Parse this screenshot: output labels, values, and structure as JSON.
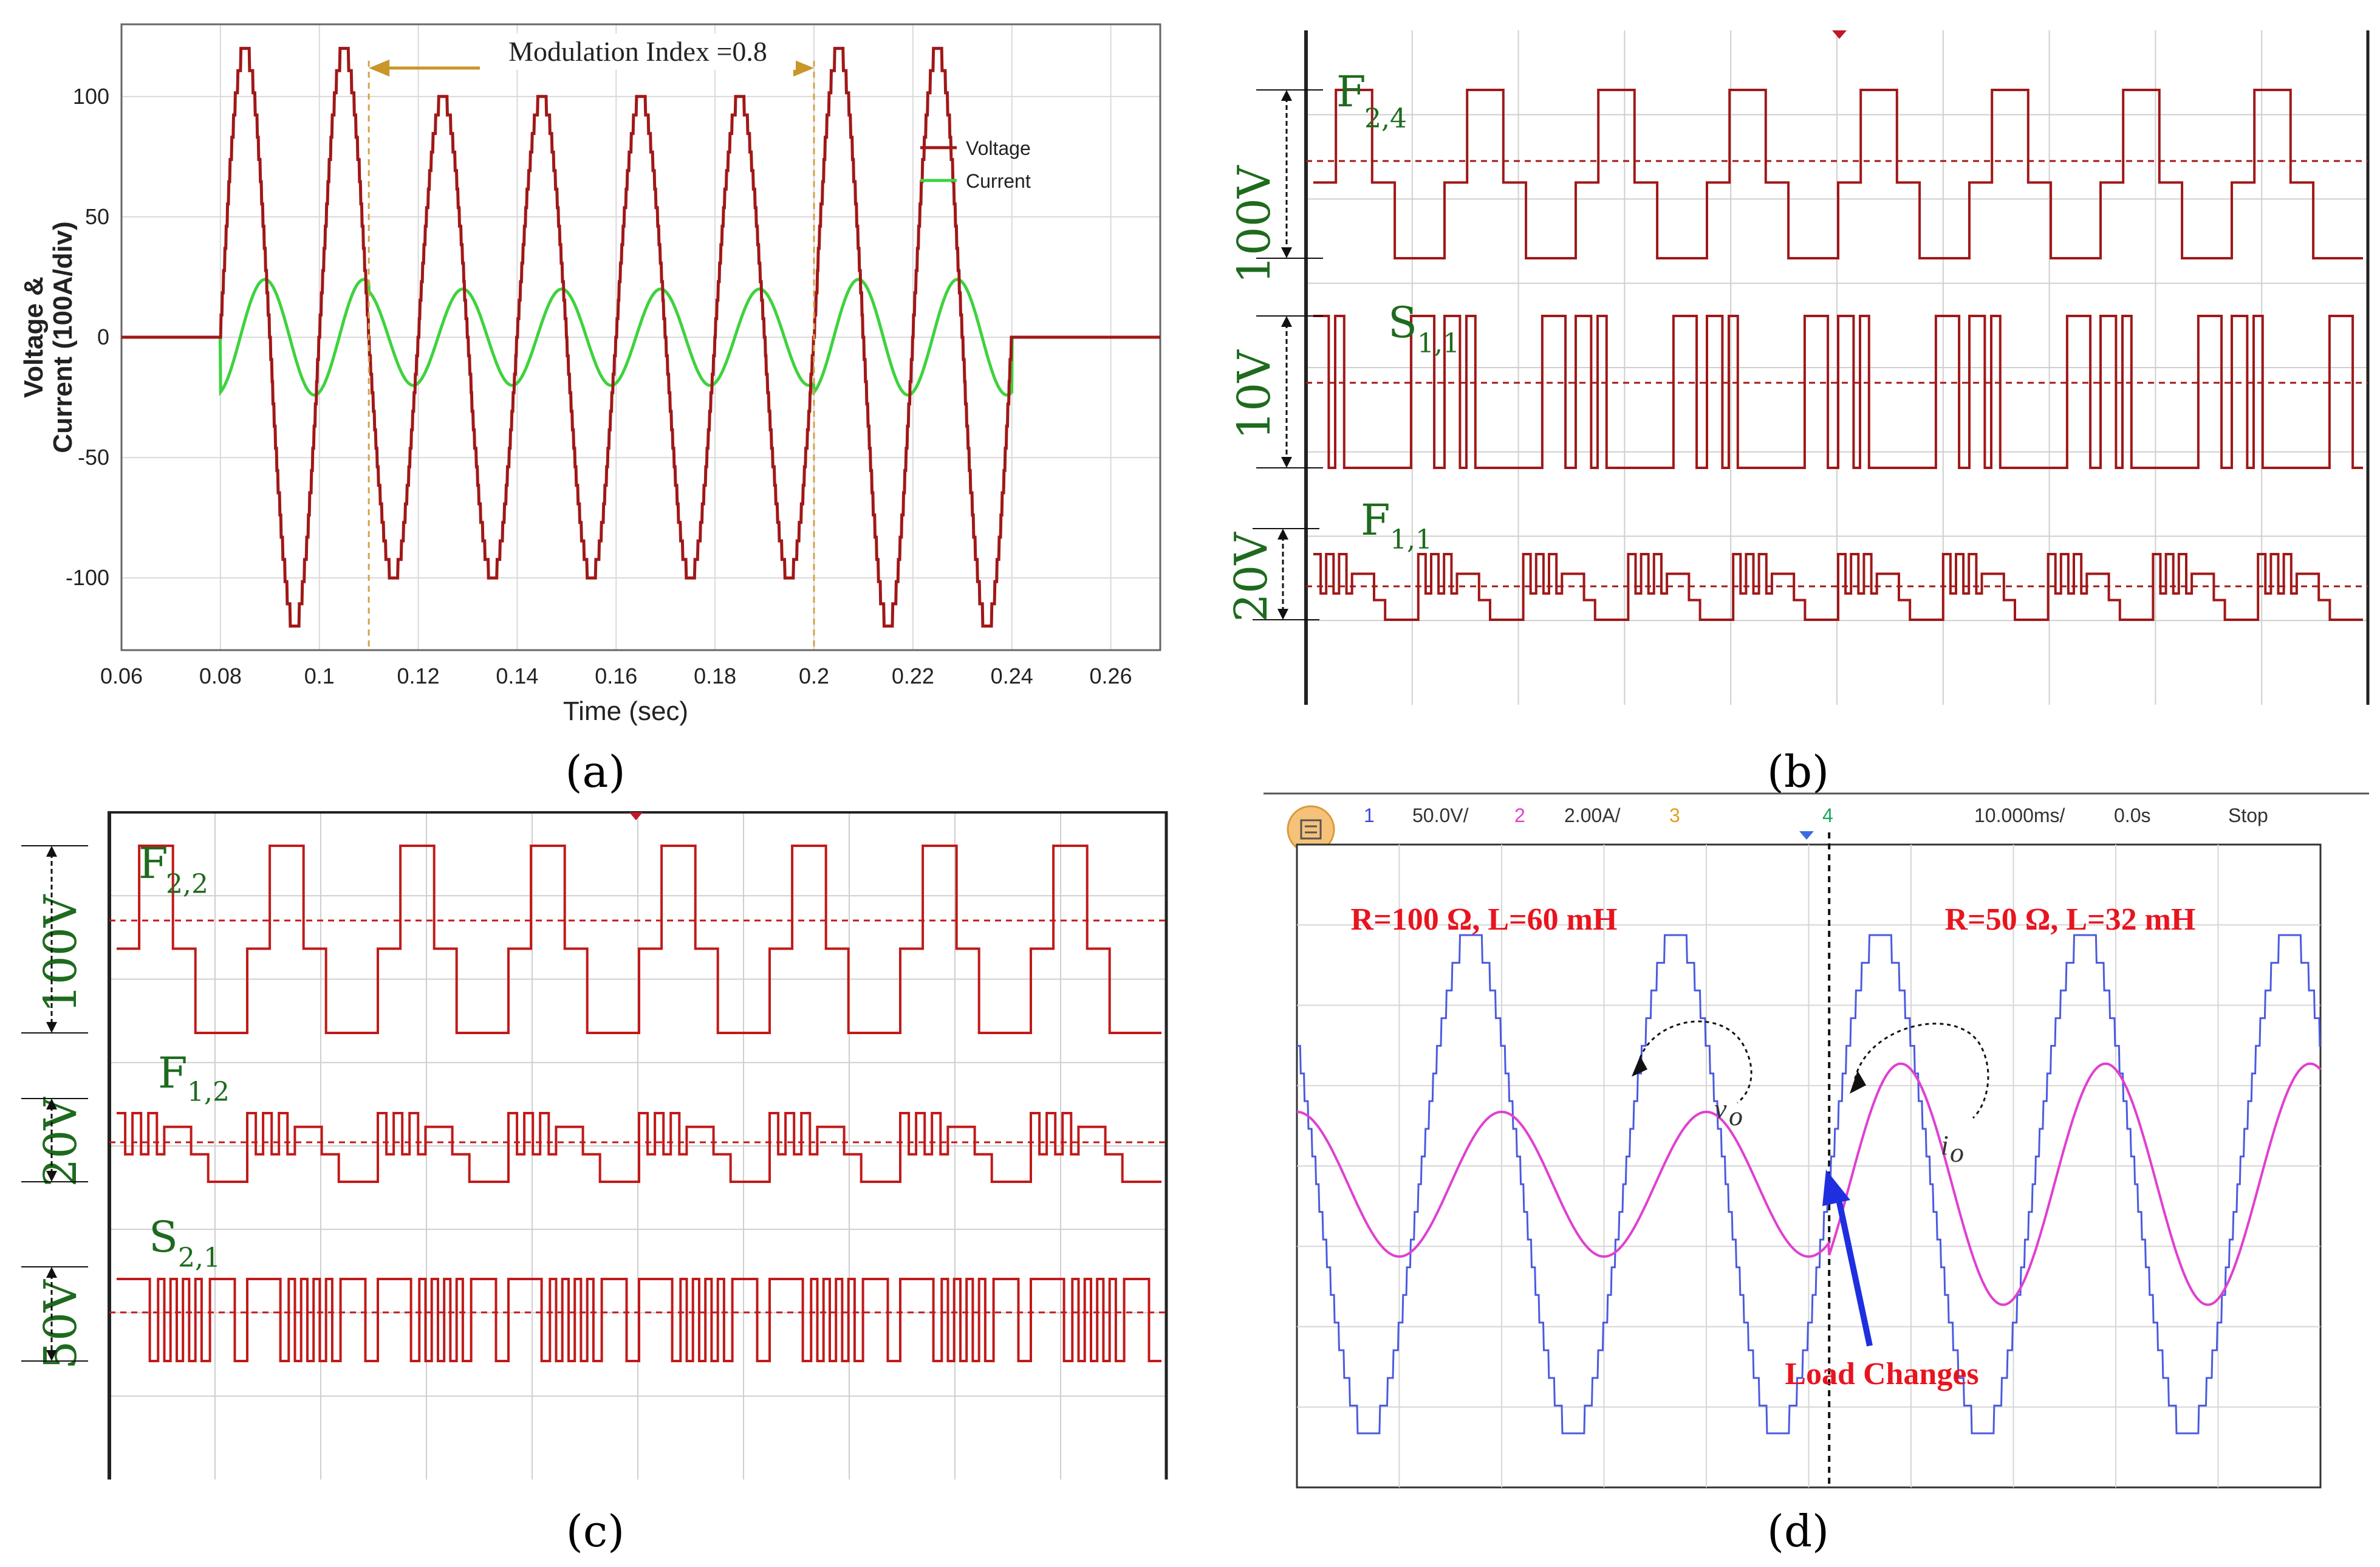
{
  "captions": {
    "a": "(a)",
    "b": "(b)",
    "c": "(c)",
    "d": "(d)"
  },
  "chart_data": [
    {
      "type": "line",
      "panel": "a",
      "title": "",
      "xlabel": "Time (sec)",
      "ylabel_line1": "Voltage &",
      "ylabel_line2": "Current (100A/div)",
      "xlim": [
        0.06,
        0.27
      ],
      "ylim": [
        -130,
        130
      ],
      "x_ticks": [
        "0.06",
        "0.08",
        "0.1",
        "0.12",
        "0.14",
        "0.16",
        "0.18",
        "0.2",
        "0.22",
        "0.24",
        "0.26"
      ],
      "y_ticks": [
        "100",
        "50",
        "0",
        "-50",
        "-100"
      ],
      "grid": true,
      "legend": "top-right",
      "annotation": {
        "text": "Modulation Index =0.8",
        "x_start": 0.11,
        "x_end": 0.2
      },
      "series": [
        {
          "name": "Voltage",
          "color": "#a01818",
          "on": 0.08,
          "off": 0.24,
          "frequency_hz": 50,
          "amplitude_segments": [
            {
              "from": 0.08,
              "to": 0.11,
              "amp": 120
            },
            {
              "from": 0.11,
              "to": 0.2,
              "amp": 100
            },
            {
              "from": 0.2,
              "to": 0.24,
              "amp": 120
            }
          ],
          "steps": 13
        },
        {
          "name": "Current",
          "color": "#3ed23e",
          "on": 0.08,
          "off": 0.24,
          "frequency_hz": 50,
          "amplitude_segments": [
            {
              "from": 0.08,
              "to": 0.11,
              "amp": 24
            },
            {
              "from": 0.11,
              "to": 0.2,
              "amp": 20
            },
            {
              "from": 0.2,
              "to": 0.24,
              "amp": 24
            }
          ],
          "phase_lag_sec": 0.004
        }
      ]
    },
    {
      "type": "line",
      "panel": "b",
      "traces": [
        {
          "label": "F",
          "sub": "2,4",
          "scale": "100V",
          "color": "#a01818"
        },
        {
          "label": "S",
          "sub": "1,1",
          "scale": "10V",
          "color": "#a01818"
        },
        {
          "label": "F",
          "sub": "1,1",
          "scale": "20V",
          "color": "#a01818"
        }
      ]
    },
    {
      "type": "line",
      "panel": "c",
      "traces": [
        {
          "label": "F",
          "sub": "2,2",
          "scale": "100V",
          "color": "#c01a1a"
        },
        {
          "label": "F",
          "sub": "1,2",
          "scale": "20V",
          "color": "#c01a1a"
        },
        {
          "label": "S",
          "sub": "2,1",
          "scale": "50V",
          "color": "#c01a1a"
        }
      ]
    },
    {
      "type": "line",
      "panel": "d",
      "header": {
        "ch1": "1",
        "ch1_scale": "50.0V/",
        "ch2": "2",
        "ch2_scale": "2.00A/",
        "ch3": "3",
        "ch4": "4",
        "timebase": "10.000ms/",
        "offset": "0.0s",
        "status": "Stop"
      },
      "left_label": "R=100 Ω, L=60 mH",
      "right_label": "R=50 Ω, L=32 mH",
      "load_label": "Load Changes",
      "vo_label": "v",
      "vo_sub": "o",
      "io_label": "i",
      "io_sub": "o",
      "series": [
        {
          "name": "vo",
          "color": "#4a5ae0",
          "amplitude_div": 3.1,
          "period_div": 2,
          "steps": 9
        },
        {
          "name": "io",
          "color": "#e040d0",
          "amplitude_div_before": 0.9,
          "amplitude_div_after": 1.5,
          "period_div": 2
        }
      ],
      "load_change_div": 5.2
    }
  ]
}
